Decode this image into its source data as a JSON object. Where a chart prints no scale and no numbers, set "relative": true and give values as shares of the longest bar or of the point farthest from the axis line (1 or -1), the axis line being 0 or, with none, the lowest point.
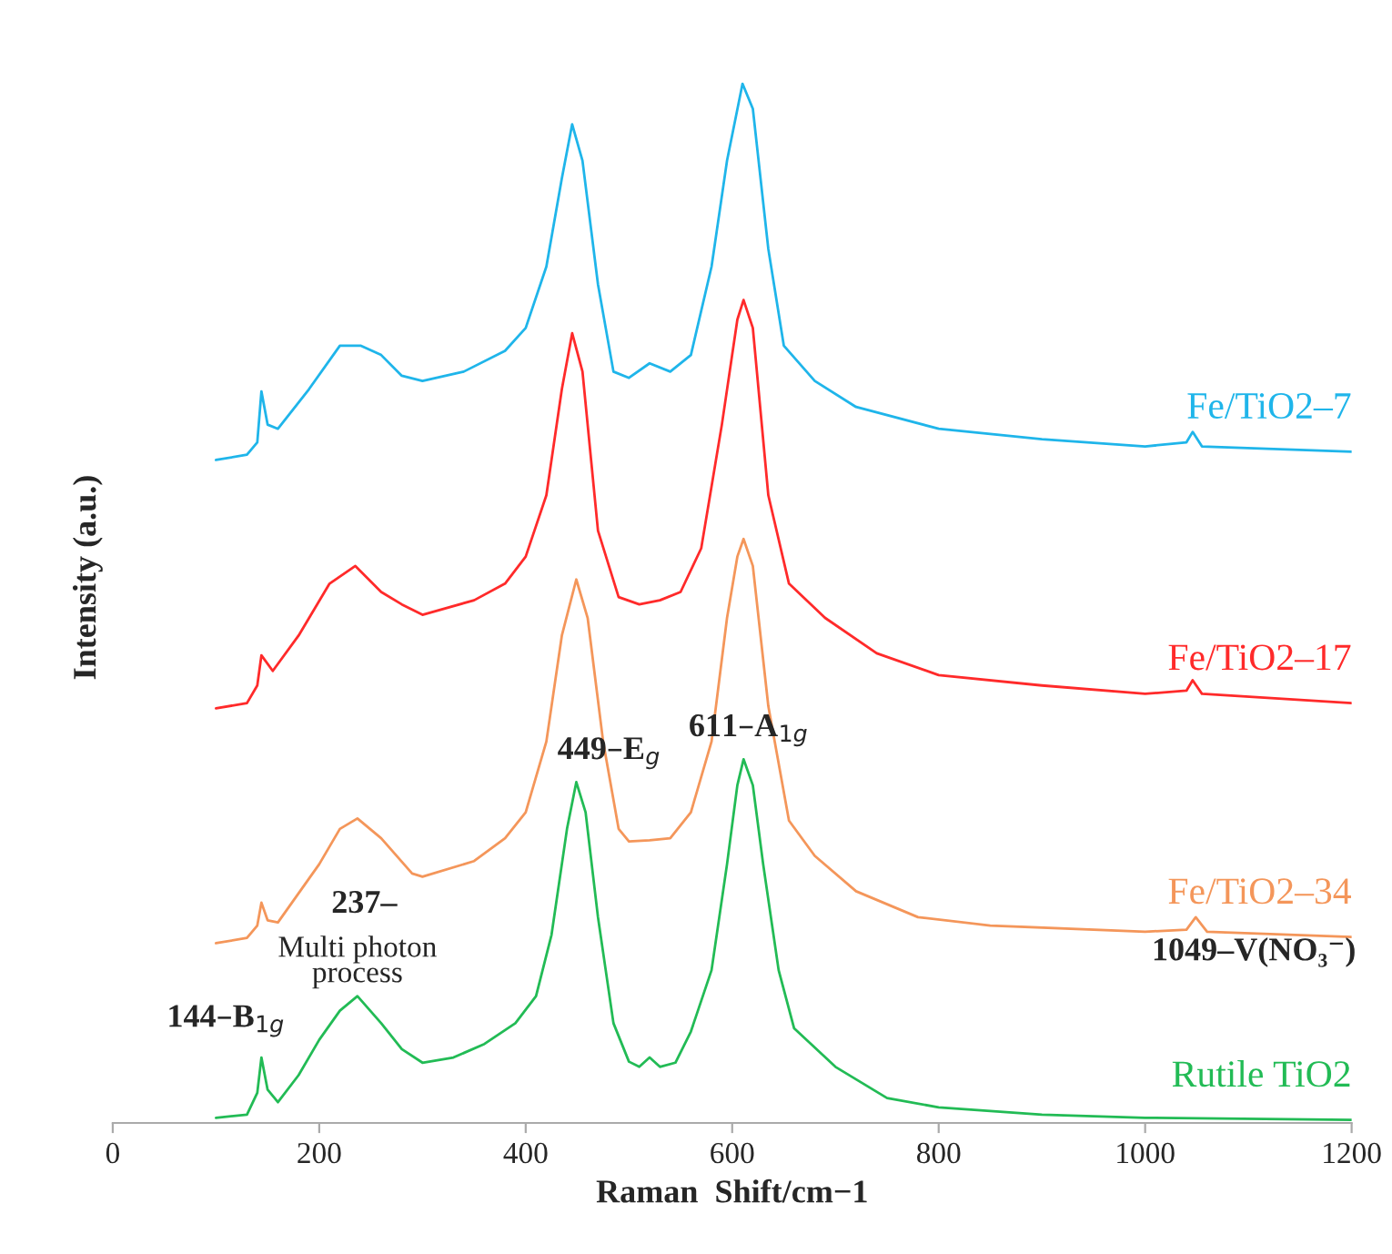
{
  "chart_data": {
    "type": "line",
    "relative": true,
    "xlabel": "Raman  Shift/cm−1",
    "ylabel": "Intensity (a.u.)",
    "xlim": [
      0,
      1200
    ],
    "xticks": [
      0,
      200,
      400,
      600,
      800,
      1000,
      1200
    ],
    "legend": false,
    "grid": false,
    "tick_labels": "x",
    "series": [
      {
        "name": "Fe/TiO2–7",
        "color": "#1fb5ea",
        "x": [
          100,
          130,
          140,
          144,
          150,
          160,
          190,
          220,
          240,
          260,
          280,
          300,
          340,
          380,
          400,
          420,
          435,
          445,
          455,
          470,
          485,
          500,
          520,
          540,
          560,
          580,
          595,
          610,
          620,
          635,
          650,
          680,
          720,
          800,
          900,
          1000,
          1040,
          1046,
          1055,
          1200
        ],
        "values": [
          0.638,
          0.643,
          0.655,
          0.704,
          0.672,
          0.668,
          0.706,
          0.748,
          0.748,
          0.739,
          0.719,
          0.714,
          0.723,
          0.743,
          0.765,
          0.824,
          0.909,
          0.961,
          0.926,
          0.807,
          0.723,
          0.717,
          0.731,
          0.723,
          0.739,
          0.824,
          0.926,
          1.0,
          0.976,
          0.841,
          0.748,
          0.714,
          0.689,
          0.668,
          0.658,
          0.651,
          0.655,
          0.665,
          0.651,
          0.646
        ]
      },
      {
        "name": "Fe/TiO2–17",
        "color": "#ff2a2a",
        "x": [
          100,
          130,
          140,
          144,
          155,
          180,
          210,
          235,
          260,
          280,
          300,
          350,
          380,
          400,
          420,
          435,
          445,
          455,
          470,
          490,
          510,
          530,
          550,
          570,
          590,
          605,
          611,
          620,
          635,
          655,
          690,
          740,
          800,
          900,
          1000,
          1040,
          1046,
          1055,
          1200
        ],
        "values": [
          0.399,
          0.404,
          0.421,
          0.45,
          0.435,
          0.469,
          0.519,
          0.536,
          0.511,
          0.499,
          0.489,
          0.503,
          0.519,
          0.545,
          0.604,
          0.706,
          0.76,
          0.723,
          0.57,
          0.506,
          0.499,
          0.503,
          0.511,
          0.553,
          0.672,
          0.773,
          0.792,
          0.765,
          0.604,
          0.519,
          0.486,
          0.452,
          0.431,
          0.421,
          0.413,
          0.416,
          0.426,
          0.413,
          0.404
        ]
      },
      {
        "name": "Fe/TiO2–34",
        "color": "#f4965a",
        "x": [
          100,
          130,
          140,
          144,
          150,
          160,
          200,
          220,
          237,
          260,
          290,
          300,
          350,
          380,
          400,
          420,
          435,
          449,
          460,
          475,
          490,
          500,
          520,
          540,
          560,
          580,
          595,
          605,
          611,
          620,
          635,
          655,
          680,
          720,
          780,
          850,
          1000,
          1040,
          1049,
          1060,
          1200
        ],
        "values": [
          0.173,
          0.178,
          0.19,
          0.212,
          0.195,
          0.193,
          0.249,
          0.283,
          0.293,
          0.274,
          0.24,
          0.237,
          0.252,
          0.274,
          0.299,
          0.367,
          0.469,
          0.523,
          0.486,
          0.367,
          0.283,
          0.271,
          0.272,
          0.274,
          0.299,
          0.367,
          0.486,
          0.545,
          0.562,
          0.536,
          0.401,
          0.291,
          0.257,
          0.223,
          0.198,
          0.19,
          0.184,
          0.186,
          0.198,
          0.184,
          0.179
        ]
      },
      {
        "name": "Rutile TiO2",
        "color": "#22bb55",
        "x": [
          100,
          130,
          140,
          144,
          150,
          160,
          180,
          200,
          220,
          237,
          260,
          280,
          300,
          330,
          360,
          390,
          410,
          425,
          440,
          449,
          458,
          470,
          485,
          500,
          510,
          520,
          530,
          545,
          560,
          580,
          595,
          605,
          611,
          620,
          630,
          645,
          660,
          700,
          750,
          800,
          900,
          1000,
          1200
        ],
        "values": [
          0.005,
          0.008,
          0.029,
          0.063,
          0.032,
          0.02,
          0.046,
          0.08,
          0.108,
          0.122,
          0.096,
          0.071,
          0.058,
          0.063,
          0.076,
          0.096,
          0.122,
          0.181,
          0.283,
          0.328,
          0.299,
          0.198,
          0.096,
          0.059,
          0.054,
          0.063,
          0.054,
          0.058,
          0.088,
          0.147,
          0.249,
          0.325,
          0.35,
          0.325,
          0.249,
          0.147,
          0.091,
          0.054,
          0.024,
          0.015,
          0.008,
          0.005,
          0.003
        ]
      }
    ],
    "annotations": [
      {
        "text": "144–B$_{1g}$",
        "x": 144,
        "y": 0.063
      },
      "237–",
      {
        "text": "Multi photon\nprocess",
        "x": 237,
        "y": 0.122
      },
      {
        "text": "449–E$_{g}$",
        "x": 449,
        "y": 0.328
      },
      {
        "text": "611–A$_{1g}$",
        "x": 611,
        "y": 0.35
      },
      {
        "text": "1049–V(NO₃⁻)",
        "x": 1049,
        "y": 0.198
      }
    ]
  }
}
